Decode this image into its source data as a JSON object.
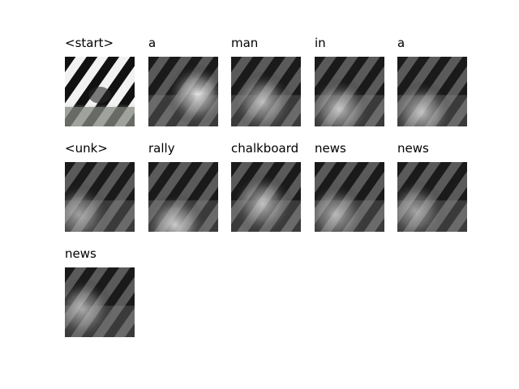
{
  "attention_steps": [
    {
      "word": "<start>",
      "kind": "photo"
    },
    {
      "word": "a",
      "kind": "attn",
      "focus": [
        0.7,
        0.55
      ],
      "strength": 0.9
    },
    {
      "word": "man",
      "kind": "attn",
      "focus": [
        0.45,
        0.65
      ],
      "strength": 0.7
    },
    {
      "word": "in",
      "kind": "attn",
      "focus": [
        0.35,
        0.75
      ],
      "strength": 0.75
    },
    {
      "word": "a",
      "kind": "attn",
      "focus": [
        0.35,
        0.8
      ],
      "strength": 0.75
    },
    {
      "word": "<unk>",
      "kind": "attn",
      "focus": [
        0.2,
        0.75
      ],
      "strength": 0.6
    },
    {
      "word": "rally",
      "kind": "attn",
      "focus": [
        0.38,
        0.9
      ],
      "strength": 0.85
    },
    {
      "word": "chalkboard",
      "kind": "attn",
      "focus": [
        0.45,
        0.6
      ],
      "strength": 0.7
    },
    {
      "word": "news",
      "kind": "attn",
      "focus": [
        0.3,
        0.75
      ],
      "strength": 0.65
    },
    {
      "word": "news",
      "kind": "attn",
      "focus": [
        0.25,
        0.7
      ],
      "strength": 0.6
    },
    {
      "word": "news",
      "kind": "attn",
      "focus": [
        0.25,
        0.6
      ],
      "strength": 0.65
    }
  ]
}
